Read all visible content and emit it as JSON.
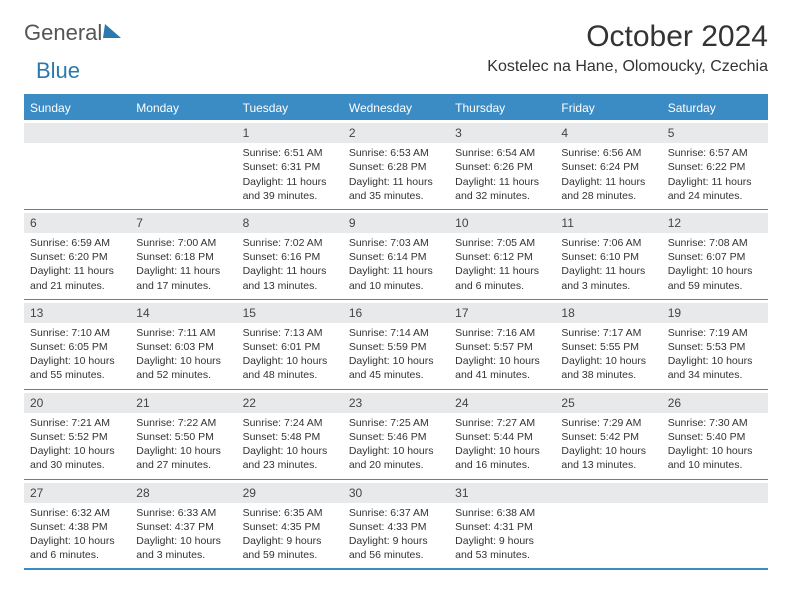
{
  "brand": {
    "part1": "General",
    "part2": "Blue"
  },
  "title": "October 2024",
  "location": "Kostelec na Hane, Olomoucky, Czechia",
  "colors": {
    "accent": "#3b8bc4",
    "daynum_bg": "#e7e9ea",
    "text": "#333333",
    "bg": "#ffffff"
  },
  "day_names": [
    "Sunday",
    "Monday",
    "Tuesday",
    "Wednesday",
    "Thursday",
    "Friday",
    "Saturday"
  ],
  "weeks": [
    [
      null,
      null,
      {
        "n": "1",
        "sunrise": "6:51 AM",
        "sunset": "6:31 PM",
        "daylight": "11 hours and 39 minutes."
      },
      {
        "n": "2",
        "sunrise": "6:53 AM",
        "sunset": "6:28 PM",
        "daylight": "11 hours and 35 minutes."
      },
      {
        "n": "3",
        "sunrise": "6:54 AM",
        "sunset": "6:26 PM",
        "daylight": "11 hours and 32 minutes."
      },
      {
        "n": "4",
        "sunrise": "6:56 AM",
        "sunset": "6:24 PM",
        "daylight": "11 hours and 28 minutes."
      },
      {
        "n": "5",
        "sunrise": "6:57 AM",
        "sunset": "6:22 PM",
        "daylight": "11 hours and 24 minutes."
      }
    ],
    [
      {
        "n": "6",
        "sunrise": "6:59 AM",
        "sunset": "6:20 PM",
        "daylight": "11 hours and 21 minutes."
      },
      {
        "n": "7",
        "sunrise": "7:00 AM",
        "sunset": "6:18 PM",
        "daylight": "11 hours and 17 minutes."
      },
      {
        "n": "8",
        "sunrise": "7:02 AM",
        "sunset": "6:16 PM",
        "daylight": "11 hours and 13 minutes."
      },
      {
        "n": "9",
        "sunrise": "7:03 AM",
        "sunset": "6:14 PM",
        "daylight": "11 hours and 10 minutes."
      },
      {
        "n": "10",
        "sunrise": "7:05 AM",
        "sunset": "6:12 PM",
        "daylight": "11 hours and 6 minutes."
      },
      {
        "n": "11",
        "sunrise": "7:06 AM",
        "sunset": "6:10 PM",
        "daylight": "11 hours and 3 minutes."
      },
      {
        "n": "12",
        "sunrise": "7:08 AM",
        "sunset": "6:07 PM",
        "daylight": "10 hours and 59 minutes."
      }
    ],
    [
      {
        "n": "13",
        "sunrise": "7:10 AM",
        "sunset": "6:05 PM",
        "daylight": "10 hours and 55 minutes."
      },
      {
        "n": "14",
        "sunrise": "7:11 AM",
        "sunset": "6:03 PM",
        "daylight": "10 hours and 52 minutes."
      },
      {
        "n": "15",
        "sunrise": "7:13 AM",
        "sunset": "6:01 PM",
        "daylight": "10 hours and 48 minutes."
      },
      {
        "n": "16",
        "sunrise": "7:14 AM",
        "sunset": "5:59 PM",
        "daylight": "10 hours and 45 minutes."
      },
      {
        "n": "17",
        "sunrise": "7:16 AM",
        "sunset": "5:57 PM",
        "daylight": "10 hours and 41 minutes."
      },
      {
        "n": "18",
        "sunrise": "7:17 AM",
        "sunset": "5:55 PM",
        "daylight": "10 hours and 38 minutes."
      },
      {
        "n": "19",
        "sunrise": "7:19 AM",
        "sunset": "5:53 PM",
        "daylight": "10 hours and 34 minutes."
      }
    ],
    [
      {
        "n": "20",
        "sunrise": "7:21 AM",
        "sunset": "5:52 PM",
        "daylight": "10 hours and 30 minutes."
      },
      {
        "n": "21",
        "sunrise": "7:22 AM",
        "sunset": "5:50 PM",
        "daylight": "10 hours and 27 minutes."
      },
      {
        "n": "22",
        "sunrise": "7:24 AM",
        "sunset": "5:48 PM",
        "daylight": "10 hours and 23 minutes."
      },
      {
        "n": "23",
        "sunrise": "7:25 AM",
        "sunset": "5:46 PM",
        "daylight": "10 hours and 20 minutes."
      },
      {
        "n": "24",
        "sunrise": "7:27 AM",
        "sunset": "5:44 PM",
        "daylight": "10 hours and 16 minutes."
      },
      {
        "n": "25",
        "sunrise": "7:29 AM",
        "sunset": "5:42 PM",
        "daylight": "10 hours and 13 minutes."
      },
      {
        "n": "26",
        "sunrise": "7:30 AM",
        "sunset": "5:40 PM",
        "daylight": "10 hours and 10 minutes."
      }
    ],
    [
      {
        "n": "27",
        "sunrise": "6:32 AM",
        "sunset": "4:38 PM",
        "daylight": "10 hours and 6 minutes."
      },
      {
        "n": "28",
        "sunrise": "6:33 AM",
        "sunset": "4:37 PM",
        "daylight": "10 hours and 3 minutes."
      },
      {
        "n": "29",
        "sunrise": "6:35 AM",
        "sunset": "4:35 PM",
        "daylight": "9 hours and 59 minutes."
      },
      {
        "n": "30",
        "sunrise": "6:37 AM",
        "sunset": "4:33 PM",
        "daylight": "9 hours and 56 minutes."
      },
      {
        "n": "31",
        "sunrise": "6:38 AM",
        "sunset": "4:31 PM",
        "daylight": "9 hours and 53 minutes."
      },
      null,
      null
    ]
  ],
  "labels": {
    "sunrise": "Sunrise: ",
    "sunset": "Sunset: ",
    "daylight": "Daylight: "
  }
}
